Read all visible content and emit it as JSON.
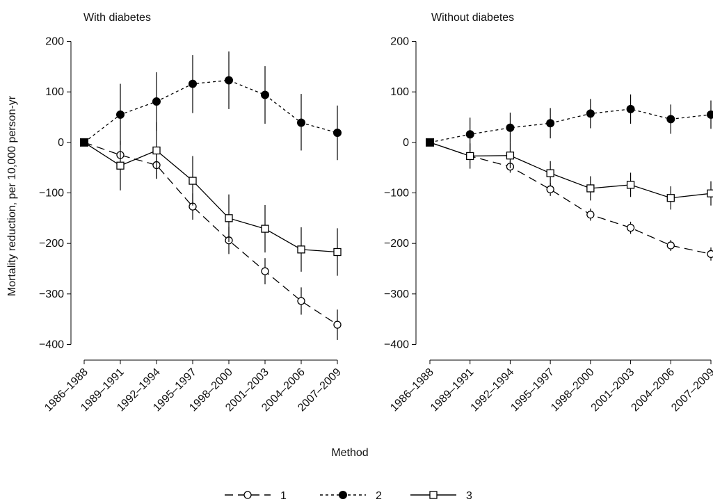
{
  "chart_data": {
    "type": "line",
    "xlabel": "Method",
    "ylabel": "Mortality reduction, per 10,000 person-yr",
    "categories": [
      "1986–1988",
      "1989–1991",
      "1992–1994",
      "1995–1997",
      "1998–2000",
      "2001–2003",
      "2004–2006",
      "2007–2009"
    ],
    "ylim": [
      -420,
      220
    ],
    "yticks": [
      -400,
      -300,
      -200,
      -100,
      0,
      100,
      200
    ],
    "ytick_labels": [
      "−400",
      "−300",
      "−200",
      "−100",
      "0",
      "100",
      "200"
    ],
    "legend": {
      "placement": "bottom",
      "entries": [
        {
          "label": "1",
          "style": "long-dash",
          "marker": "hollow-circle"
        },
        {
          "label": "2",
          "style": "short-dash",
          "marker": "filled-circle"
        },
        {
          "label": "3",
          "style": "solid",
          "marker": "hollow-square"
        }
      ]
    },
    "panels": [
      {
        "title": "With diabetes",
        "series": [
          {
            "name": "1",
            "values": [
              0,
              -25,
              -45,
              -127,
              -194,
              -255,
              -314,
              -361
            ],
            "err_low": [
              0,
              -32,
              -72,
              -153,
              -221,
              -281,
              -341,
              -391
            ],
            "err_high": [
              0,
              -18,
              -18,
              -101,
              -167,
              -229,
              -287,
              -331
            ]
          },
          {
            "name": "2",
            "values": [
              0,
              55,
              81,
              116,
              123,
              94,
              39,
              19
            ],
            "err_low": [
              0,
              -5,
              23,
              58,
              66,
              37,
              -16,
              -35
            ],
            "err_high": [
              0,
              116,
              139,
              173,
              180,
              151,
              96,
              73
            ]
          },
          {
            "name": "3",
            "values": [
              0,
              -46,
              -16,
              -76,
              -150,
              -171,
              -212,
              -217
            ],
            "err_low": [
              0,
              -95,
              -72,
              -125,
              -197,
              -218,
              -256,
              -264
            ],
            "err_high": [
              0,
              3,
              40,
              -27,
              -103,
              -124,
              -168,
              -170
            ]
          }
        ]
      },
      {
        "title": "Without diabetes",
        "series": [
          {
            "name": "1",
            "values": [
              0,
              -27,
              -48,
              -93,
              -143,
              -169,
              -204,
              -221
            ],
            "err_low": [
              0,
              -31,
              -60,
              -106,
              -155,
              -181,
              -215,
              -234
            ],
            "err_high": [
              0,
              -23,
              -36,
              -80,
              -131,
              -157,
              -193,
              -208
            ]
          },
          {
            "name": "2",
            "values": [
              0,
              16,
              29,
              38,
              57,
              66,
              46,
              55
            ],
            "err_low": [
              0,
              -17,
              -1,
              8,
              28,
              37,
              17,
              27
            ],
            "err_high": [
              0,
              49,
              59,
              68,
              86,
              95,
              75,
              83
            ]
          },
          {
            "name": "3",
            "values": [
              0,
              -27,
              -26,
              -61,
              -91,
              -84,
              -110,
              -101
            ],
            "err_low": [
              0,
              -52,
              -51,
              -85,
              -115,
              -108,
              -133,
              -125
            ],
            "err_high": [
              0,
              -2,
              -1,
              -37,
              -67,
              -60,
              -87,
              -77
            ]
          }
        ]
      }
    ]
  }
}
